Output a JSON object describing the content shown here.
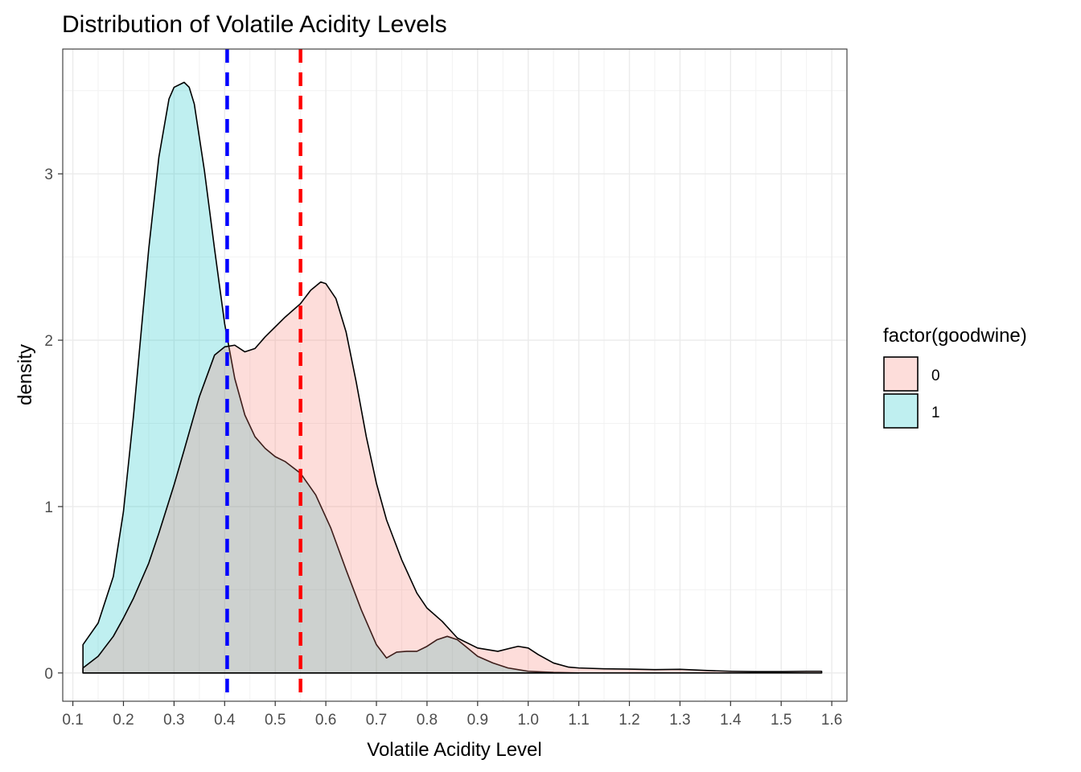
{
  "chart_data": {
    "type": "area",
    "title": "Distribution of Volatile Acidity Levels",
    "xlabel": "Volatile Acidity Level",
    "ylabel": "density",
    "xlim": [
      0.08,
      1.63
    ],
    "ylim": [
      -0.17,
      3.75
    ],
    "x_ticks": [
      0.1,
      0.2,
      0.3,
      0.4,
      0.5,
      0.6,
      0.7,
      0.8,
      0.9,
      1.0,
      1.1,
      1.2,
      1.3,
      1.4,
      1.5,
      1.6
    ],
    "x_tick_labels": [
      "0.1",
      "0.2",
      "0.3",
      "0.4",
      "0.5",
      "0.6",
      "0.7",
      "0.8",
      "0.9",
      "1.0",
      "1.1",
      "1.2",
      "1.3",
      "1.4",
      "1.5",
      "1.6"
    ],
    "y_ticks": [
      0,
      1,
      2,
      3
    ],
    "y_tick_labels": [
      "0",
      "1",
      "2",
      "3"
    ],
    "grid": true,
    "legend": {
      "title": "factor(goodwine)",
      "placement": "right",
      "entries": [
        "0",
        "1"
      ]
    },
    "series": [
      {
        "name": "0",
        "color": "#F8766D",
        "x": [
          0.12,
          0.15,
          0.18,
          0.2,
          0.22,
          0.25,
          0.27,
          0.3,
          0.32,
          0.35,
          0.38,
          0.4,
          0.42,
          0.44,
          0.46,
          0.48,
          0.5,
          0.52,
          0.55,
          0.57,
          0.59,
          0.6,
          0.62,
          0.64,
          0.66,
          0.68,
          0.7,
          0.72,
          0.75,
          0.78,
          0.8,
          0.83,
          0.86,
          0.9,
          0.94,
          0.98,
          1.0,
          1.02,
          1.05,
          1.08,
          1.1,
          1.15,
          1.2,
          1.25,
          1.3,
          1.35,
          1.4,
          1.45,
          1.5,
          1.55,
          1.58
        ],
        "y": [
          0.03,
          0.1,
          0.22,
          0.33,
          0.45,
          0.66,
          0.84,
          1.13,
          1.34,
          1.66,
          1.91,
          1.96,
          1.97,
          1.93,
          1.95,
          2.02,
          2.08,
          2.14,
          2.22,
          2.3,
          2.35,
          2.34,
          2.25,
          2.05,
          1.75,
          1.42,
          1.14,
          0.92,
          0.68,
          0.48,
          0.39,
          0.31,
          0.21,
          0.15,
          0.13,
          0.16,
          0.15,
          0.11,
          0.06,
          0.035,
          0.03,
          0.025,
          0.023,
          0.02,
          0.022,
          0.015,
          0.01,
          0.008,
          0.008,
          0.01,
          0.01
        ]
      },
      {
        "name": "1",
        "color": "#00BFC4",
        "x": [
          0.12,
          0.12,
          0.15,
          0.18,
          0.2,
          0.22,
          0.25,
          0.27,
          0.29,
          0.3,
          0.32,
          0.33,
          0.34,
          0.36,
          0.38,
          0.4,
          0.42,
          0.44,
          0.46,
          0.48,
          0.5,
          0.52,
          0.55,
          0.58,
          0.61,
          0.64,
          0.67,
          0.7,
          0.72,
          0.74,
          0.76,
          0.78,
          0.8,
          0.82,
          0.84,
          0.86,
          0.88,
          0.9,
          0.93,
          0.96,
          1.0,
          1.05,
          1.1
        ],
        "y": [
          0.0,
          0.17,
          0.3,
          0.58,
          0.97,
          1.55,
          2.55,
          3.1,
          3.45,
          3.52,
          3.55,
          3.52,
          3.42,
          3.02,
          2.55,
          2.1,
          1.77,
          1.55,
          1.42,
          1.35,
          1.3,
          1.27,
          1.2,
          1.07,
          0.87,
          0.62,
          0.38,
          0.17,
          0.09,
          0.125,
          0.13,
          0.13,
          0.16,
          0.2,
          0.22,
          0.2,
          0.15,
          0.1,
          0.06,
          0.03,
          0.01,
          0.003,
          0.0
        ]
      }
    ],
    "reference_lines": [
      {
        "x": 0.405,
        "color": "#0000FF",
        "style": "dashed"
      },
      {
        "x": 0.55,
        "color": "#FF0000",
        "style": "dashed"
      }
    ]
  }
}
